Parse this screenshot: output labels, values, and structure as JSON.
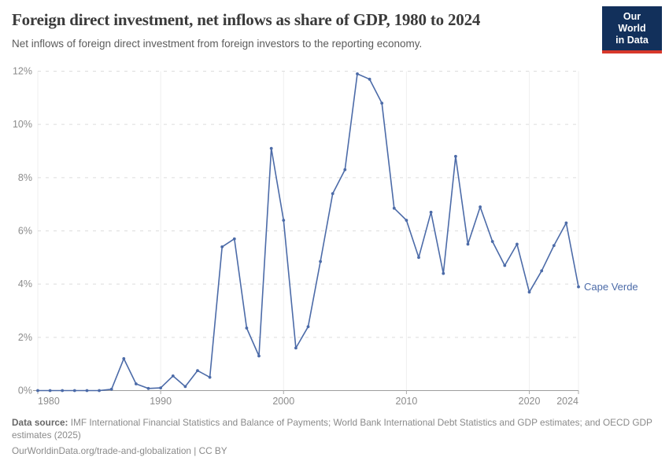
{
  "header": {
    "title": "Foreign direct investment, net inflows as share of GDP, 1980 to 2024",
    "subtitle": "Net inflows of foreign direct investment from foreign investors to the reporting economy.",
    "logo": {
      "line1": "Our World",
      "line2": "in Data",
      "bg_color": "#12305b",
      "accent_color": "#d7382b"
    }
  },
  "chart_data": {
    "type": "line",
    "title": "Foreign direct investment, net inflows as share of GDP, 1980 to 2024",
    "xlabel": "",
    "ylabel": "",
    "x": [
      1980,
      1981,
      1982,
      1983,
      1984,
      1985,
      1986,
      1987,
      1988,
      1989,
      1990,
      1991,
      1992,
      1993,
      1994,
      1995,
      1996,
      1997,
      1998,
      1999,
      2000,
      2001,
      2002,
      2003,
      2004,
      2005,
      2006,
      2007,
      2008,
      2009,
      2010,
      2011,
      2012,
      2013,
      2014,
      2015,
      2016,
      2017,
      2018,
      2019,
      2020,
      2021,
      2022,
      2023,
      2024
    ],
    "series": [
      {
        "name": "Cape Verde",
        "values": [
          0.0,
          0.0,
          0.0,
          0.0,
          0.0,
          0.0,
          0.05,
          1.2,
          0.25,
          0.08,
          0.1,
          0.55,
          0.15,
          0.75,
          0.5,
          5.4,
          5.7,
          2.35,
          1.3,
          9.1,
          6.4,
          1.6,
          2.4,
          4.85,
          7.4,
          8.3,
          11.9,
          11.7,
          10.8,
          6.85,
          6.4,
          5.0,
          6.7,
          4.4,
          8.8,
          5.5,
          6.9,
          5.6,
          4.7,
          5.5,
          3.7,
          4.5,
          5.45,
          6.3,
          3.9
        ]
      }
    ],
    "entity_label": "Cape Verde",
    "ylim": [
      0,
      12
    ],
    "yticks": [
      0,
      2,
      4,
      6,
      8,
      10,
      12
    ],
    "ytick_suffix": "%",
    "xticks": [
      1980,
      1990,
      2000,
      2010,
      2020,
      2024
    ],
    "grid": "horizontal-dashed",
    "legend_position": "end-of-line",
    "line_color": "#4c6ba8",
    "grid_color": "#dcdcdc",
    "axis_color": "#9e9e9e",
    "tick_label_color": "#8c8c8c"
  },
  "footer": {
    "datasource_label": "Data source:",
    "datasource_text": " IMF International Financial Statistics and Balance of Payments; World Bank International Debt Statistics and GDP estimates; and OECD GDP estimates (2025)",
    "citation": "OurWorldinData.org/trade-and-globalization | CC BY"
  }
}
